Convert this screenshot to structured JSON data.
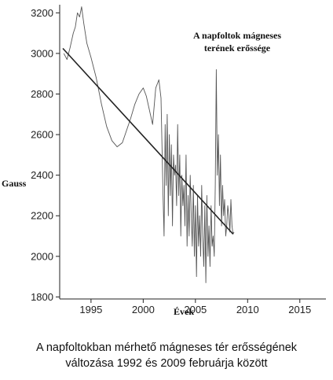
{
  "chart_data": {
    "type": "line",
    "title_lines": [
      "A napfoltok mágneses",
      "terének erőssége"
    ],
    "xlabel": "Évek",
    "ylabel": "Gauss",
    "xlim": [
      1992,
      2017.5
    ],
    "ylim": [
      1790,
      3240
    ],
    "x_ticks": [
      1995,
      2000,
      2005,
      2010,
      2015
    ],
    "y_ticks": [
      1800,
      2000,
      2200,
      2400,
      2600,
      2800,
      3000,
      3200
    ],
    "grid": false,
    "legend": "none",
    "line_color": "#555555",
    "trend_color": "#222222",
    "series": [
      {
        "kind": "measurement",
        "x": [
          1992.4,
          1992.7,
          1993.0,
          1993.3,
          1993.5,
          1993.7,
          1993.9,
          1994.1,
          1994.3,
          1994.6,
          1995.0,
          1995.5,
          1996.0,
          1996.5,
          1997.0,
          1997.5,
          1998.0,
          1998.4,
          1998.8,
          1999.2,
          1999.6,
          2000.0,
          2000.3,
          2000.6,
          2000.9,
          2001.2,
          2001.5,
          2001.7,
          2001.9,
          2002.0,
          2002.1,
          2002.2,
          2002.3,
          2002.4,
          2002.5,
          2002.6,
          2002.7,
          2002.8,
          2002.9,
          2003.0,
          2003.1,
          2003.2,
          2003.3,
          2003.4,
          2003.5,
          2003.6,
          2003.7,
          2003.8,
          2003.9,
          2004.0,
          2004.1,
          2004.2,
          2004.3,
          2004.4,
          2004.5,
          2004.6,
          2004.7,
          2004.8,
          2004.9,
          2005.0,
          2005.1,
          2005.2,
          2005.3,
          2005.4,
          2005.5,
          2005.6,
          2005.7,
          2005.8,
          2005.9,
          2006.0,
          2006.1,
          2006.2,
          2006.3,
          2006.4,
          2006.5,
          2006.6,
          2006.7,
          2006.8,
          2006.9,
          2007.0,
          2007.1,
          2007.2,
          2007.3,
          2007.4,
          2007.5,
          2007.6,
          2007.7,
          2007.8,
          2007.9,
          2008.0,
          2008.1,
          2008.2,
          2008.3,
          2008.4,
          2008.5,
          2008.6,
          2008.7
        ],
        "y": [
          3000,
          2970,
          3030,
          3100,
          3130,
          3200,
          3180,
          3230,
          3150,
          3050,
          2980,
          2880,
          2750,
          2640,
          2570,
          2540,
          2560,
          2620,
          2680,
          2750,
          2800,
          2830,
          2790,
          2720,
          2650,
          2830,
          2870,
          2780,
          2300,
          2100,
          2650,
          2350,
          2700,
          2200,
          2600,
          2300,
          2550,
          2150,
          2500,
          2400,
          2450,
          2250,
          2650,
          2300,
          2500,
          2100,
          2400,
          2250,
          2350,
          2150,
          2500,
          2050,
          2300,
          2100,
          2400,
          2200,
          2050,
          2350,
          2000,
          2250,
          1900,
          2300,
          2050,
          2200,
          2000,
          2350,
          2100,
          1950,
          2250,
          1870,
          2300,
          2000,
          2150,
          1950,
          2250,
          2050,
          2100,
          2000,
          2350,
          2920,
          2400,
          2600,
          2250,
          2500,
          2150,
          2350,
          2200,
          2280,
          2100,
          2150,
          2250,
          2200,
          2120,
          2280,
          2150,
          2110,
          2120
        ]
      },
      {
        "kind": "linear-trend",
        "x": [
          1992.3,
          2008.6
        ],
        "y": [
          3025,
          2110
        ]
      }
    ]
  },
  "caption_lines": [
    "A napfoltokban mérhető mágneses tér erősségének",
    "változása 1992 és 2009 februárja között"
  ]
}
